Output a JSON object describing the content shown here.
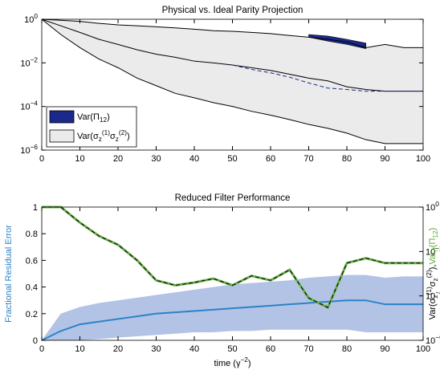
{
  "chart_data": [
    {
      "type": "line",
      "title": "Physical vs. Ideal Parity Projection",
      "x": [
        0,
        5,
        10,
        15,
        20,
        25,
        30,
        35,
        40,
        45,
        50,
        55,
        60,
        65,
        70,
        75,
        80,
        85,
        90,
        95,
        100
      ],
      "xlim": [
        0,
        100
      ],
      "xticks": [
        0,
        10,
        20,
        30,
        40,
        50,
        60,
        70,
        80,
        90,
        100
      ],
      "ylim": [
        1e-06,
        1
      ],
      "ylog": true,
      "yticks": [
        {
          "value": 1e-06,
          "label": "10^{−6}"
        },
        {
          "value": 0.0001,
          "label": "10^{−4}"
        },
        {
          "value": 0.01,
          "label": "10^{−2}"
        },
        {
          "value": 1,
          "label": "10^{0}"
        }
      ],
      "legend": "lower left",
      "series": [
        {
          "name": "Var(σ_{z}^{(1)}σ_{z}^{(2)})",
          "color": "#ebebeb",
          "style": "area",
          "upper": [
            1,
            0.9,
            0.8,
            0.65,
            0.55,
            0.5,
            0.45,
            0.4,
            0.35,
            0.3,
            0.28,
            0.25,
            0.22,
            0.18,
            0.15,
            0.12,
            0.09,
            0.05,
            0.07,
            0.05,
            0.05
          ],
          "lower": [
            1,
            0.2,
            0.05,
            0.015,
            0.006,
            0.002,
            0.0009,
            0.0004,
            0.00025,
            0.00015,
            0.0001,
            6e-05,
            4e-05,
            2.5e-05,
            1.5e-05,
            1e-05,
            6e-06,
            3e-06,
            2e-06,
            2e-06,
            2e-06
          ]
        },
        {
          "name": "Var(Π_{12})",
          "color": "#1b2a8a",
          "style": "area",
          "upper": [
            null,
            null,
            null,
            null,
            null,
            null,
            null,
            null,
            null,
            null,
            null,
            null,
            null,
            null,
            0.2,
            0.17,
            0.12,
            0.08,
            null,
            null,
            null
          ],
          "lower": [
            null,
            null,
            null,
            null,
            null,
            null,
            null,
            null,
            null,
            null,
            null,
            null,
            null,
            null,
            0.15,
            0.1,
            0.07,
            0.045,
            null,
            null,
            null
          ]
        },
        {
          "color": "#000000",
          "style": "line",
          "values": [
            1,
            0.9,
            0.8,
            0.65,
            0.55,
            0.5,
            0.45,
            0.4,
            0.35,
            0.3,
            0.28,
            0.25,
            0.22,
            0.18,
            0.15,
            0.12,
            0.09,
            0.05,
            0.07,
            0.05,
            0.05
          ]
        },
        {
          "color": "#000000",
          "style": "line",
          "values": [
            1,
            0.5,
            0.25,
            0.12,
            0.07,
            0.04,
            0.025,
            0.018,
            0.012,
            0.01,
            0.008,
            0.006,
            0.0045,
            0.003,
            0.002,
            0.0015,
            0.0008,
            0.0006,
            0.0005,
            0.0005,
            0.0005
          ]
        },
        {
          "color": "#000000",
          "style": "line",
          "values": [
            1,
            0.2,
            0.05,
            0.015,
            0.006,
            0.002,
            0.0009,
            0.0004,
            0.00025,
            0.00015,
            0.0001,
            6e-05,
            4e-05,
            2.5e-05,
            1.5e-05,
            1e-05,
            6e-06,
            3e-06,
            2e-06,
            2e-06,
            2e-06
          ]
        },
        {
          "color": "#1b2a8a",
          "style": "dashed",
          "values": [
            null,
            null,
            null,
            null,
            null,
            null,
            null,
            null,
            null,
            null,
            0.008,
            0.005,
            0.0035,
            0.0022,
            0.0012,
            0.0007,
            0.0006,
            0.0005,
            0.0005,
            0.0005,
            0.0005
          ]
        }
      ]
    },
    {
      "type": "line",
      "title": "Reduced Filter Performance",
      "x": [
        0,
        5,
        10,
        15,
        20,
        25,
        30,
        35,
        40,
        45,
        50,
        55,
        60,
        65,
        70,
        75,
        80,
        85,
        90,
        95,
        100
      ],
      "xlim": [
        0,
        100
      ],
      "xticks": [
        0,
        10,
        20,
        30,
        40,
        50,
        60,
        70,
        80,
        90,
        100
      ],
      "xlabel": "time (γ^{−2})",
      "ylim": [
        0,
        1
      ],
      "yticks": [
        0,
        0.2,
        0.4,
        0.6,
        0.8,
        1
      ],
      "ylabel": "Fractional Residual Error",
      "ylabel_color": "#2b83c6",
      "y2lim": [
        1e-06,
        1
      ],
      "y2log": true,
      "y2ticks": [
        {
          "value": 1e-06,
          "label": "10^{−6}"
        },
        {
          "value": 0.0001,
          "label": "10^{−4}"
        },
        {
          "value": 0.01,
          "label": "10^{−2}"
        },
        {
          "value": 1,
          "label": "10^{0}"
        }
      ],
      "y2label": [
        {
          "text": "Var(σ_{z}^{(1)}σ_{z}^{(2)}),",
          "color": "#000000"
        },
        {
          "text": "Var_{rf}(Π_{12})",
          "color": "#5aa832"
        }
      ],
      "series": [
        {
          "color": "#b3c3e6",
          "style": "area",
          "upper": [
            0,
            0.2,
            0.25,
            0.28,
            0.3,
            0.32,
            0.34,
            0.36,
            0.38,
            0.4,
            0.42,
            0.43,
            0.44,
            0.45,
            0.47,
            0.48,
            0.49,
            0.49,
            0.47,
            0.48,
            0.48
          ],
          "lower": [
            0,
            0,
            0,
            0.01,
            0.02,
            0.03,
            0.04,
            0.05,
            0.06,
            0.06,
            0.07,
            0.07,
            0.08,
            0.08,
            0.08,
            0.08,
            0.08,
            0.06,
            0.06,
            0.06,
            0.06
          ]
        },
        {
          "color": "#2b83c6",
          "style": "line",
          "width": 2,
          "values": [
            0,
            0.07,
            0.12,
            0.14,
            0.16,
            0.18,
            0.2,
            0.21,
            0.22,
            0.23,
            0.24,
            0.25,
            0.26,
            0.27,
            0.28,
            0.29,
            0.3,
            0.3,
            0.27,
            0.27,
            0.27
          ]
        },
        {
          "color": "#6ab04c",
          "style": "line",
          "width": 3,
          "axis": "y2",
          "values": [
            1,
            1,
            0.2,
            0.05,
            0.02,
            0.004,
            0.0005,
            0.0003,
            0.0004,
            0.0006,
            0.0003,
            0.0008,
            0.0005,
            0.0015,
            8e-05,
            3e-05,
            0.003,
            0.005,
            0.003,
            0.003,
            0.003
          ]
        },
        {
          "color": "#000000",
          "style": "dashed",
          "axis": "y2",
          "values": [
            1,
            1,
            0.2,
            0.05,
            0.02,
            0.004,
            0.0005,
            0.0003,
            0.0004,
            0.0006,
            0.0003,
            0.0008,
            0.0005,
            0.0015,
            8e-05,
            3e-05,
            0.003,
            0.005,
            0.003,
            0.003,
            0.003
          ]
        }
      ]
    }
  ]
}
